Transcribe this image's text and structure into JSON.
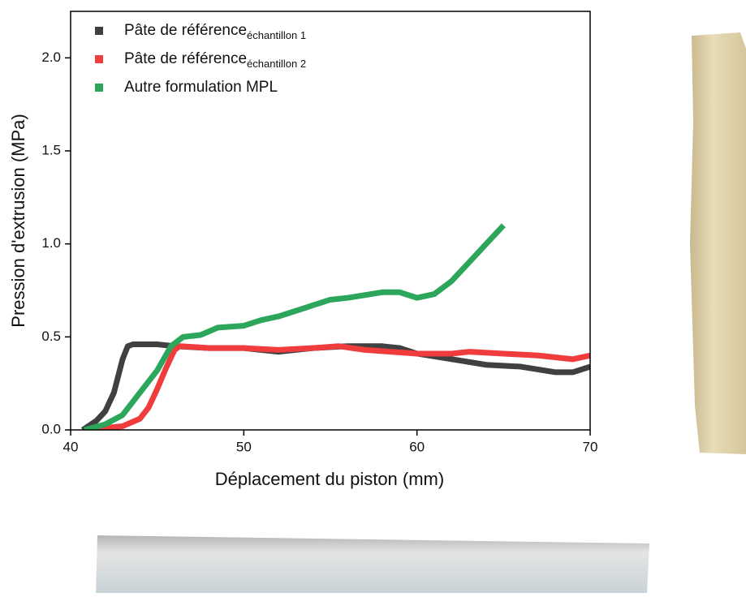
{
  "chart_data": {
    "type": "line",
    "x_label": "Déplacement du piston (mm)",
    "y_label": "Pression d'extrusion (MPa)",
    "xlim": [
      40,
      70
    ],
    "ylim": [
      0,
      2.25
    ],
    "xticks": [
      40,
      50,
      60,
      70
    ],
    "yticks": [
      {
        "value": 0,
        "label": "0.0"
      },
      {
        "value": 0.5,
        "label": "0.5"
      },
      {
        "value": 1,
        "label": "1.0"
      },
      {
        "value": 1.5,
        "label": "1.5"
      },
      {
        "value": 2,
        "label": "2.0"
      }
    ],
    "series": [
      {
        "name": "Pâte de référence",
        "name_subscript": "échantillon 1",
        "color": "#404040",
        "x": [
          40.7,
          41.5,
          42,
          42.5,
          43,
          43.3,
          43.6,
          45,
          46,
          48,
          50,
          52,
          54,
          56,
          58,
          59,
          60,
          62,
          64,
          66,
          68,
          69,
          70
        ],
        "values": [
          0,
          0.05,
          0.1,
          0.2,
          0.38,
          0.45,
          0.46,
          0.46,
          0.45,
          0.44,
          0.44,
          0.42,
          0.44,
          0.45,
          0.45,
          0.44,
          0.41,
          0.38,
          0.35,
          0.34,
          0.31,
          0.31,
          0.34
        ]
      },
      {
        "name": "Pâte de référence",
        "name_subscript": "échantillon 2",
        "color": "#f03c3c",
        "x": [
          41,
          42,
          43,
          44,
          44.5,
          45,
          45.5,
          46,
          46.3,
          48,
          50,
          52,
          54,
          55.5,
          57,
          60,
          62,
          63,
          65,
          67,
          69,
          70
        ],
        "values": [
          0,
          0.01,
          0.02,
          0.06,
          0.12,
          0.22,
          0.33,
          0.43,
          0.45,
          0.44,
          0.44,
          0.43,
          0.44,
          0.45,
          0.43,
          0.41,
          0.41,
          0.42,
          0.41,
          0.4,
          0.38,
          0.4
        ]
      },
      {
        "name": "Autre formulation MPL",
        "color": "#2ca65a",
        "x": [
          40.8,
          42,
          43,
          44,
          45,
          45.8,
          46.5,
          47.5,
          48.5,
          50,
          51,
          52,
          54,
          55,
          56,
          58,
          59,
          60,
          61,
          62,
          63,
          64,
          65
        ],
        "values": [
          0,
          0.03,
          0.08,
          0.2,
          0.32,
          0.45,
          0.5,
          0.51,
          0.55,
          0.56,
          0.59,
          0.61,
          0.67,
          0.7,
          0.71,
          0.74,
          0.74,
          0.71,
          0.73,
          0.8,
          0.9,
          1,
          1.1
        ]
      }
    ]
  }
}
